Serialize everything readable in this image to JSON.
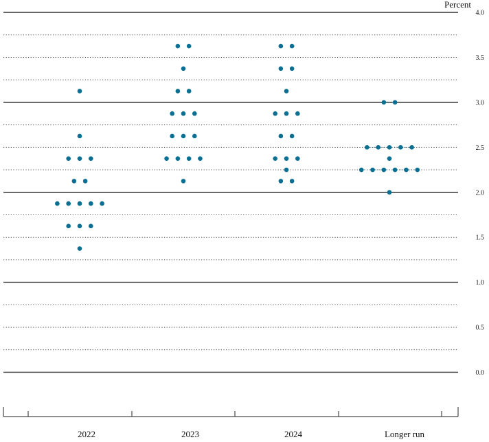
{
  "chart_data": {
    "type": "scatter",
    "unit_label": "Percent",
    "ylim": [
      0.0,
      4.0
    ],
    "y_ticks": [
      "0.0",
      "0.5",
      "1.0",
      "1.5",
      "2.0",
      "2.5",
      "3.0",
      "3.5",
      "4.0"
    ],
    "categories": [
      "2022",
      "2023",
      "2024",
      "Longer run"
    ],
    "grid": true,
    "dots": [
      {
        "category": "2022",
        "values": [
          3.125,
          2.625,
          2.375,
          2.375,
          2.375,
          2.125,
          2.125,
          1.875,
          1.875,
          1.875,
          1.875,
          1.875,
          1.625,
          1.625,
          1.625,
          1.375
        ]
      },
      {
        "category": "2023",
        "values": [
          3.625,
          3.625,
          3.375,
          3.125,
          3.125,
          2.875,
          2.875,
          2.875,
          2.625,
          2.625,
          2.625,
          2.375,
          2.375,
          2.375,
          2.375,
          2.125
        ]
      },
      {
        "category": "2024",
        "values": [
          3.625,
          3.625,
          3.375,
          3.375,
          3.125,
          2.875,
          2.875,
          2.875,
          2.625,
          2.625,
          2.375,
          2.375,
          2.375,
          2.25,
          2.125,
          2.125
        ]
      },
      {
        "category": "Longer run",
        "values": [
          3.0,
          3.0,
          2.5,
          2.5,
          2.5,
          2.5,
          2.5,
          2.375,
          2.25,
          2.25,
          2.25,
          2.25,
          2.25,
          2.25,
          2.0
        ]
      }
    ]
  }
}
